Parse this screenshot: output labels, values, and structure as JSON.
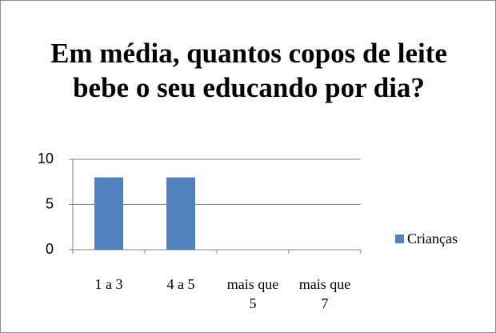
{
  "chart_data": {
    "type": "bar",
    "title": "Em média, quantos copos de leite bebe o seu educando por dia?",
    "categories": [
      "1 a 3",
      "4 a 5",
      "mais que 5",
      "mais que 7"
    ],
    "series": [
      {
        "name": "Crianças",
        "color": "#4f81bd",
        "values": [
          8,
          8,
          0,
          0
        ]
      }
    ],
    "ylim": [
      0,
      10
    ],
    "yticks": [
      0,
      5,
      10
    ],
    "grid": true,
    "legend": "right"
  }
}
